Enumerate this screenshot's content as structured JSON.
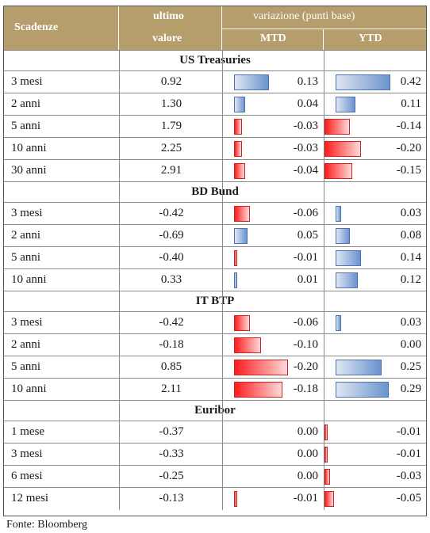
{
  "header": {
    "col_scadenze": "Scadenze",
    "col_ultimo_line1": "ultimo",
    "col_ultimo_line2": "valore",
    "col_variazione": "variazione (punti base)",
    "col_mtd": "MTD",
    "col_ytd": "YTD"
  },
  "sections": [
    {
      "title": "US Treasuries",
      "rows": [
        {
          "name": "3 mesi",
          "value": "0.92",
          "mtd": "0.13",
          "ytd": "0.42"
        },
        {
          "name": "2 anni",
          "value": "1.30",
          "mtd": "0.04",
          "ytd": "0.11"
        },
        {
          "name": "5 anni",
          "value": "1.79",
          "mtd": "-0.03",
          "ytd": "-0.14"
        },
        {
          "name": "10 anni",
          "value": "2.25",
          "mtd": "-0.03",
          "ytd": "-0.20"
        },
        {
          "name": "30 anni",
          "value": "2.91",
          "mtd": "-0.04",
          "ytd": "-0.15"
        }
      ]
    },
    {
      "title": "BD Bund",
      "rows": [
        {
          "name": "3 mesi",
          "value": "-0.42",
          "mtd": "-0.06",
          "ytd": "0.03"
        },
        {
          "name": "2 anni",
          "value": "-0.69",
          "mtd": "0.05",
          "ytd": "0.08"
        },
        {
          "name": "5 anni",
          "value": "-0.40",
          "mtd": "-0.01",
          "ytd": "0.14"
        },
        {
          "name": "10 anni",
          "value": "0.33",
          "mtd": "0.01",
          "ytd": "0.12"
        }
      ]
    },
    {
      "title": "IT BTP",
      "rows": [
        {
          "name": "3 mesi",
          "value": "-0.42",
          "mtd": "-0.06",
          "ytd": "0.03"
        },
        {
          "name": "2 anni",
          "value": "-0.18",
          "mtd": "-0.10",
          "ytd": "0.00"
        },
        {
          "name": "5 anni",
          "value": "0.85",
          "mtd": "-0.20",
          "ytd": "0.25"
        },
        {
          "name": "10 anni",
          "value": "2.11",
          "mtd": "-0.18",
          "ytd": "0.29"
        }
      ]
    },
    {
      "title": "Euribor",
      "rows": [
        {
          "name": "1 mese",
          "value": "-0.37",
          "mtd": "0.00",
          "ytd": "-0.01"
        },
        {
          "name": "3 mesi",
          "value": "-0.33",
          "mtd": "0.00",
          "ytd": "-0.01"
        },
        {
          "name": "6 mesi",
          "value": "-0.25",
          "mtd": "0.00",
          "ytd": "-0.03"
        },
        {
          "name": "12 mesi",
          "value": "-0.13",
          "mtd": "-0.01",
          "ytd": "-0.05"
        }
      ]
    }
  ],
  "source": "Fonte: Bloomberg",
  "colors": {
    "header_bg": "#b59d6c",
    "positive_bar": "#6b93cd",
    "negative_bar": "#ff1d1d"
  }
}
